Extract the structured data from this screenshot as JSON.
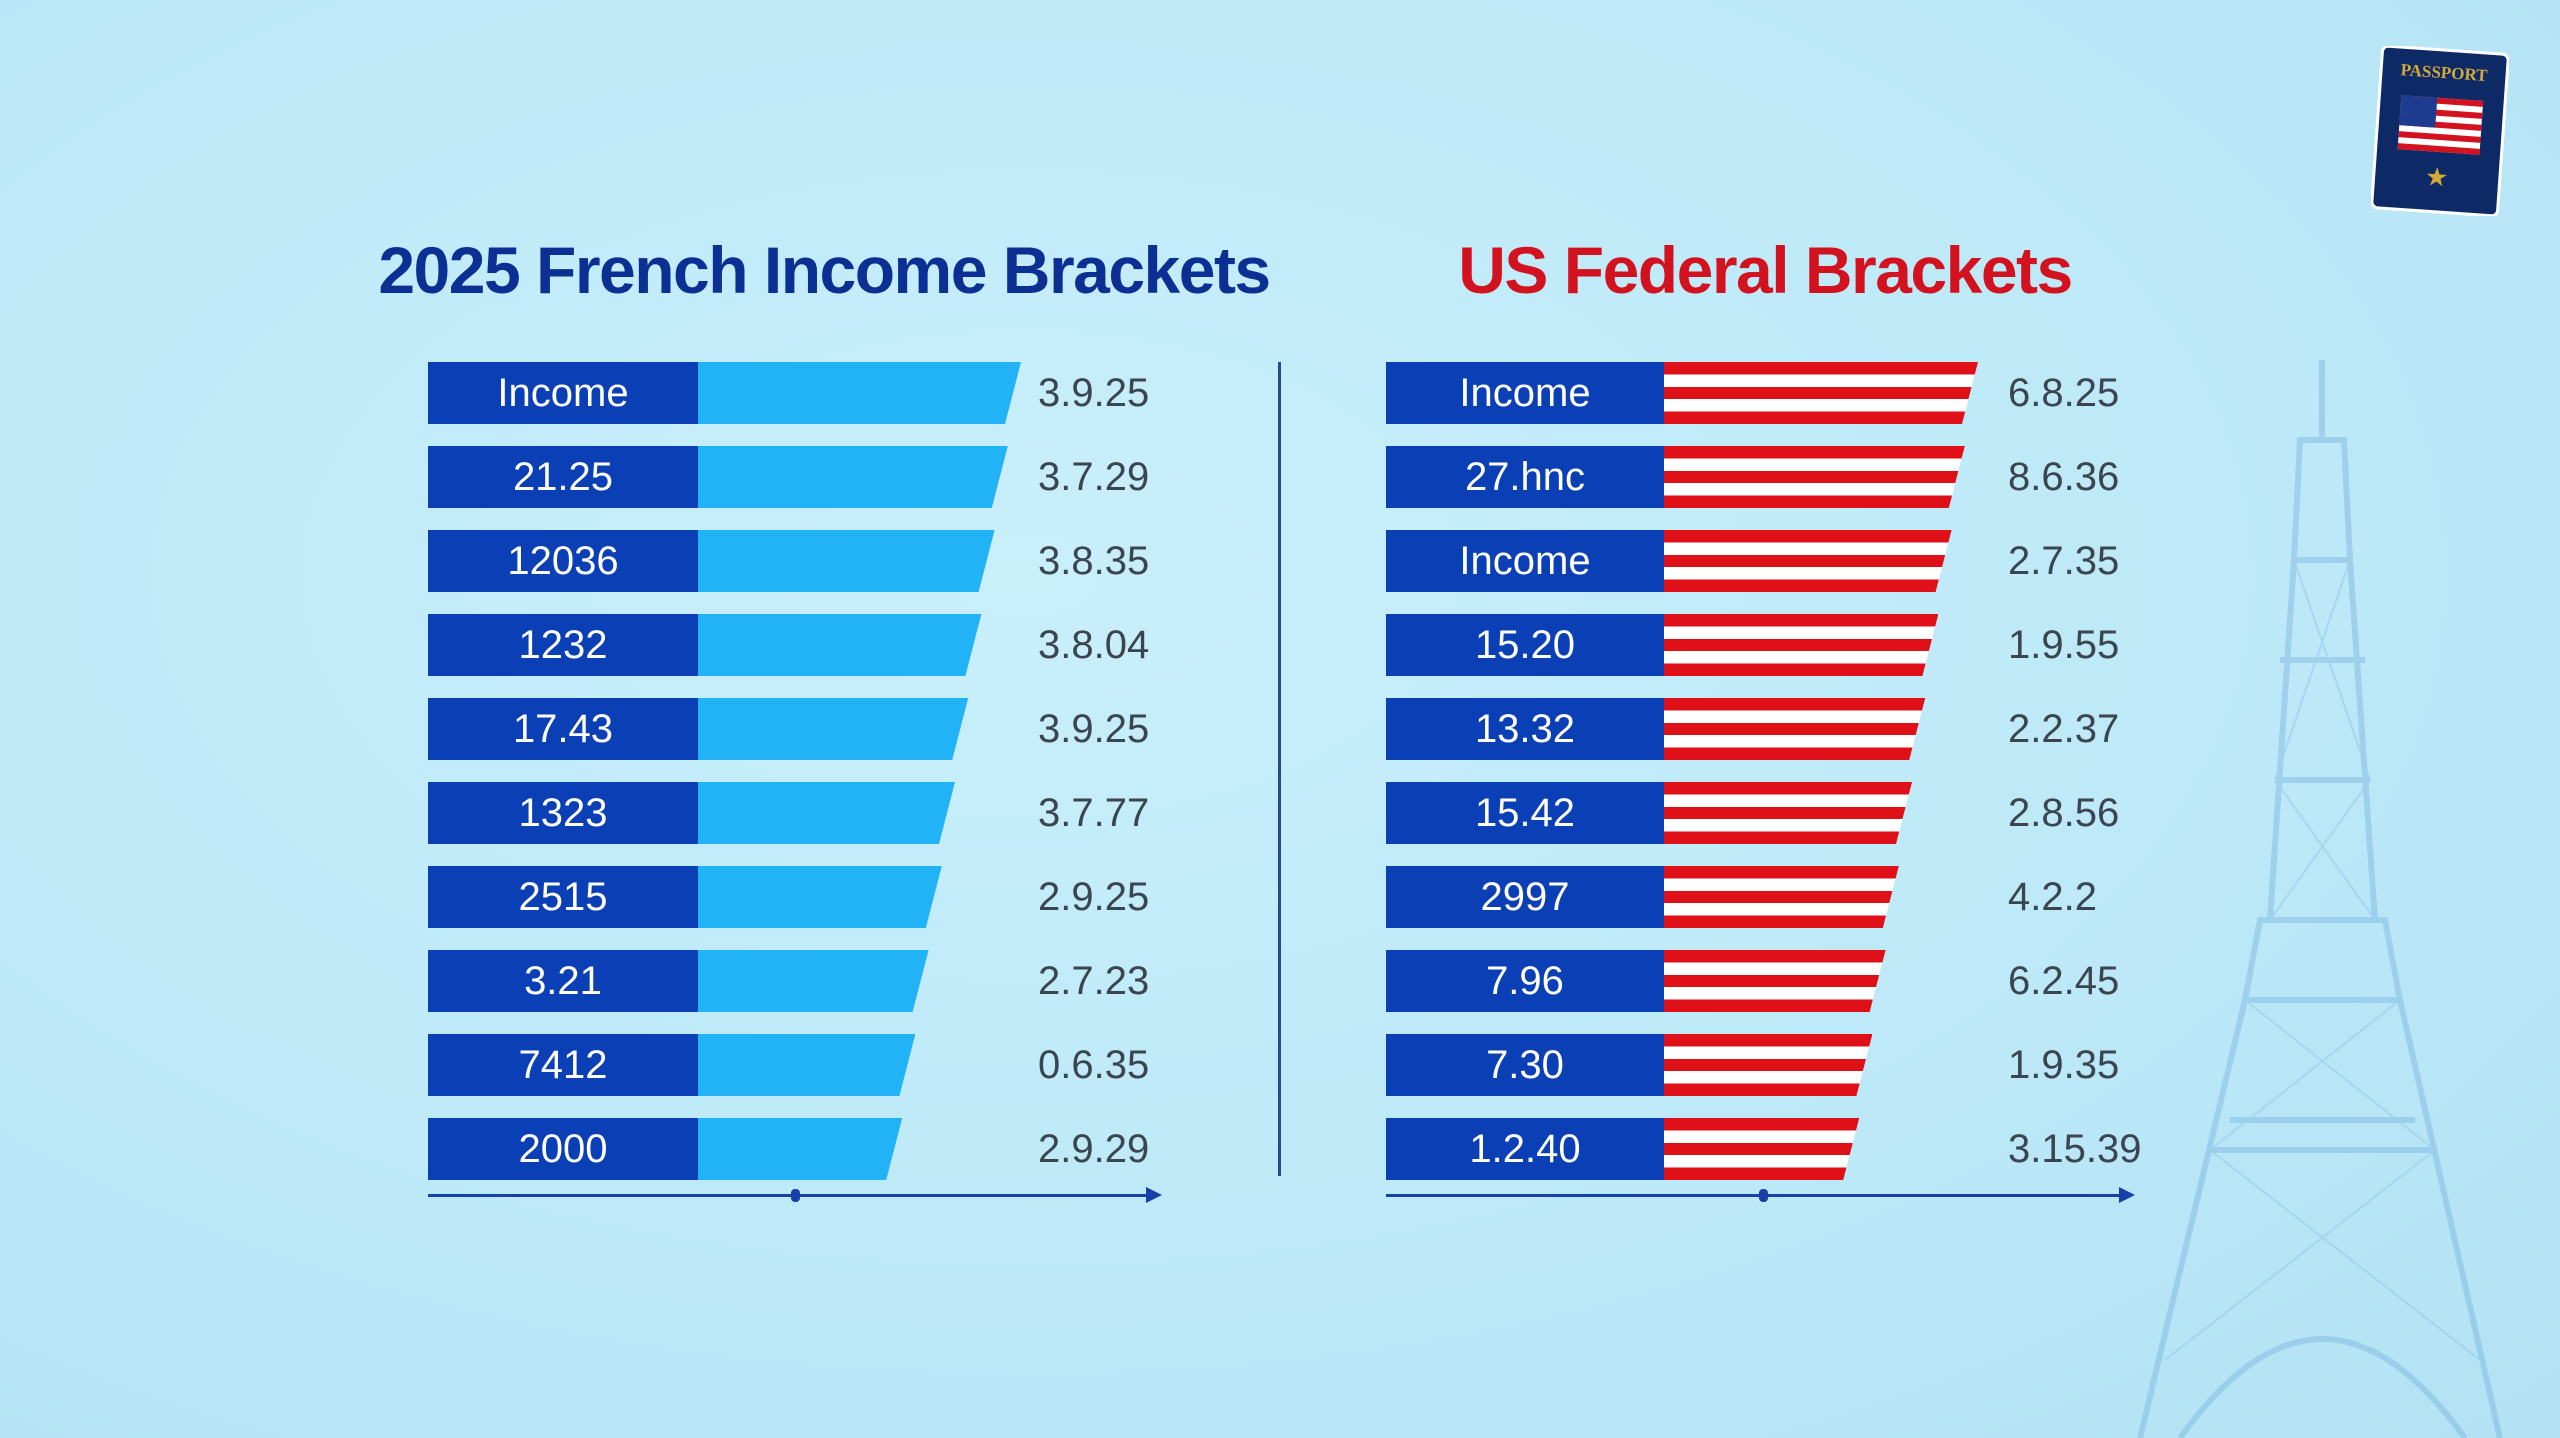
{
  "colors": {
    "french_title": "#0c2f93",
    "us_title": "#d3121f",
    "label_bg": "#0b3fb5",
    "french_bar": "#22b2f6",
    "us_stripe_red": "#e01019",
    "us_stripe_white": "#ffffff",
    "background": "#bfe9f8"
  },
  "decor": {
    "passport_text": "PASSPORT",
    "passport_icon": "us-flag-passport-icon",
    "landmark_icon": "eiffel-tower-icon"
  },
  "chart_data": [
    {
      "type": "bar",
      "title": "2025 French Income Brackets",
      "orientation": "horizontal",
      "categories": [
        "Income",
        "21.25",
        "12036",
        "1232",
        "17.43",
        "1323",
        "2515",
        "3.21",
        "7412",
        "2000"
      ],
      "value_labels": [
        "3.9.25",
        "3.7.29",
        "3.8.35",
        "3.8.04",
        "3.9.25",
        "3.7.77",
        "2.9.25",
        "2.7.23",
        "0.6.35",
        "2.9.29"
      ],
      "xlabel": "",
      "ylabel": "",
      "grid": false
    },
    {
      "type": "bar",
      "title": "US Federal Brackets",
      "orientation": "horizontal",
      "categories": [
        "Income",
        "27.hnc",
        "Income",
        "15.20",
        "13.32",
        "15.42",
        "2997",
        "7.96",
        "7.30",
        "1.2.40"
      ],
      "value_labels": [
        "6.8.25",
        "8.6.36",
        "2.7.35",
        "1.9.55",
        "2.2.37",
        "2.8.56",
        "4.2.2",
        "6.2.45",
        "1.9.35",
        "3.15.39"
      ],
      "xlabel": "",
      "ylabel": "",
      "grid": false
    }
  ]
}
